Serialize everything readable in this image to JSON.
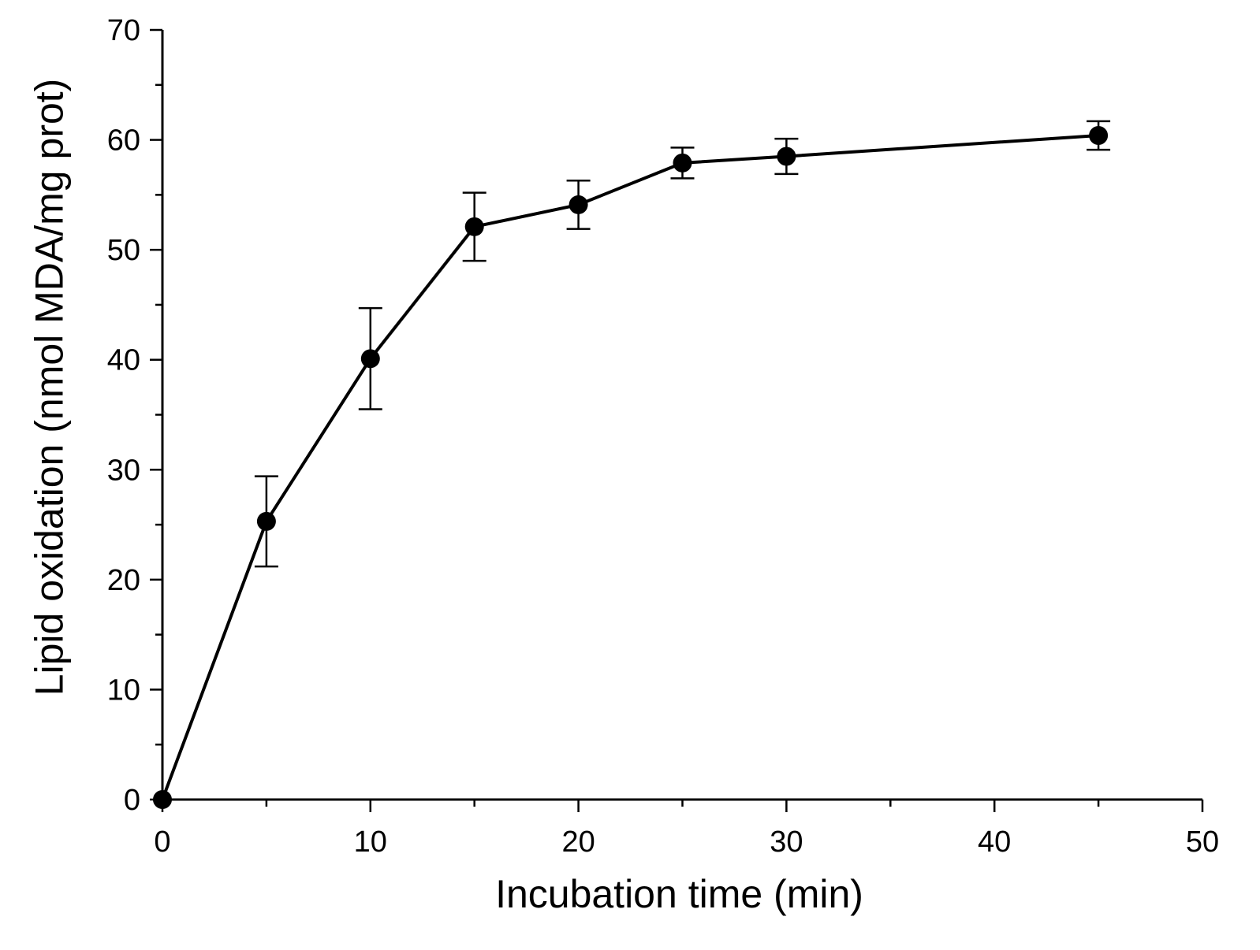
{
  "chart_data": {
    "type": "line",
    "title": "",
    "xlabel": "Incubation time (min)",
    "ylabel": "Lipid oxidation (nmol MDA/mg prot)",
    "xlim": [
      0,
      50
    ],
    "ylim": [
      0,
      70
    ],
    "x_major_ticks": [
      0,
      10,
      20,
      30,
      40,
      50
    ],
    "x_tick_labels": [
      "0",
      "10",
      "20",
      "30",
      "40",
      "50"
    ],
    "x_minor_ticks": [
      5,
      15,
      25,
      35,
      45
    ],
    "y_major_ticks": [
      0,
      10,
      20,
      30,
      40,
      50,
      60,
      70
    ],
    "y_tick_labels": [
      "0",
      "10",
      "20",
      "30",
      "40",
      "50",
      "60",
      "70"
    ],
    "y_minor_ticks": [
      5,
      15,
      25,
      35,
      45,
      55,
      65
    ],
    "grid": false,
    "legend": "none",
    "series": [
      {
        "name": "Lipid oxidation",
        "marker": "filled-circle",
        "color": "#000000",
        "x": [
          0,
          5,
          10,
          15,
          20,
          25,
          30,
          45
        ],
        "y": [
          0,
          25.3,
          40.1,
          52.1,
          54.1,
          57.9,
          58.5,
          60.4
        ],
        "error": [
          0,
          4.1,
          4.6,
          3.1,
          2.2,
          1.4,
          1.6,
          1.3
        ]
      }
    ]
  }
}
